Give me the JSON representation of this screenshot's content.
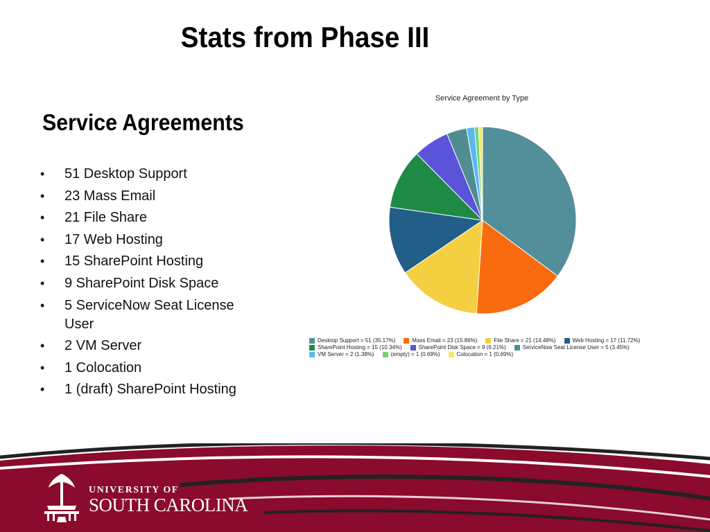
{
  "slide": {
    "title": "Stats from Phase III",
    "section_heading": "Service Agreements"
  },
  "bullets": [
    "51 Desktop Support",
    "23 Mass Email",
    "21 File Share",
    "17 Web Hosting",
    "15 SharePoint Hosting",
    "9 SharePoint Disk Space",
    "5 ServiceNow Seat License User",
    "2 VM Server",
    "1 Colocation",
    "1 (draft) SharePoint Hosting"
  ],
  "chart_data": {
    "type": "pie",
    "title": "Service Agreement by Type",
    "legend_position": "bottom",
    "slices": [
      {
        "label": "Desktop Support = 51 (35.17%)",
        "value": 51,
        "color": "#528f9b"
      },
      {
        "label": "Mass Email = 23 (15.86%)",
        "value": 23,
        "color": "#f96b0f"
      },
      {
        "label": "File Share = 21 (14.48%)",
        "value": 21,
        "color": "#f4cf42"
      },
      {
        "label": "Web Hosting = 17 (11.72%)",
        "value": 17,
        "color": "#215e88"
      },
      {
        "label": "SharePoint Hosting = 15 (10.34%)",
        "value": 15,
        "color": "#1e8a45"
      },
      {
        "label": "SharePoint Disk Space = 9 (6.21%)",
        "value": 9,
        "color": "#5a54d8"
      },
      {
        "label": "ServiceNow Seat License User = 5 (3.45%)",
        "value": 5,
        "color": "#4f8d93"
      },
      {
        "label": "VM Server = 2 (1.38%)",
        "value": 2,
        "color": "#5bb8f0"
      },
      {
        "label": "(empty) = 1 (0.69%)",
        "value": 1,
        "color": "#73d46e"
      },
      {
        "label": "Colocation = 1 (0.69%)",
        "value": 1,
        "color": "#f2e96a"
      }
    ]
  },
  "footer": {
    "logo_line1": "UNIVERSITY OF",
    "logo_line2": "SOUTH CAROLINA",
    "colors": {
      "garnet": "#8a0b2c",
      "stripe": "#222222"
    }
  }
}
